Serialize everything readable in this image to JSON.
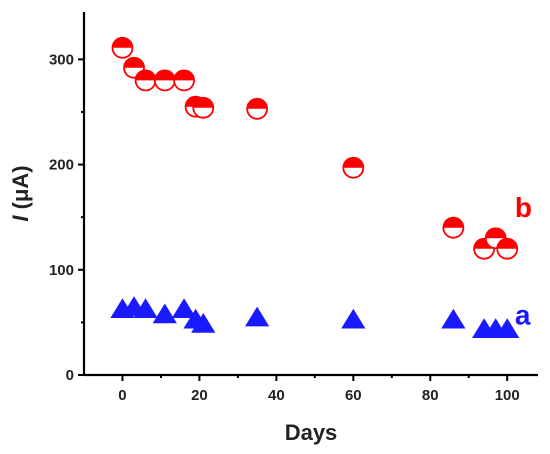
{
  "chart_data": {
    "type": "scatter",
    "xlabel": "Days",
    "ylabel_italic": "I",
    "ylabel_unit": " (μA)",
    "xlim": [
      -10,
      108
    ],
    "ylim": [
      0,
      345
    ],
    "xticks": [
      0,
      20,
      40,
      60,
      80,
      100
    ],
    "yticks": [
      0,
      100,
      200,
      300
    ],
    "series": [
      {
        "name": "b",
        "marker": "half-filled-circle",
        "color": "#ff0000",
        "x": [
          0,
          3,
          6,
          11,
          16,
          19,
          21,
          35,
          60,
          86,
          94,
          97,
          100
        ],
        "y": [
          311,
          292,
          280,
          280,
          280,
          255,
          254,
          253,
          197,
          140,
          120,
          130,
          120
        ]
      },
      {
        "name": "a",
        "marker": "triangle",
        "color": "#1a1aff",
        "x": [
          0,
          3,
          6,
          11,
          16,
          19,
          21,
          35,
          60,
          86,
          94,
          97,
          100
        ],
        "y": [
          62,
          64,
          62,
          57,
          62,
          52,
          48,
          54,
          52,
          52,
          43,
          43,
          43
        ]
      }
    ]
  }
}
